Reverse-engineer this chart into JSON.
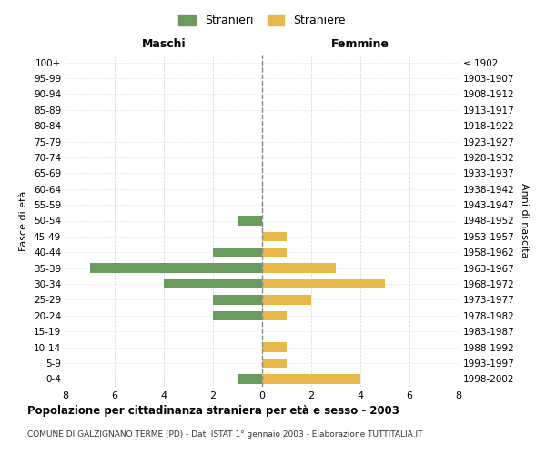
{
  "age_groups": [
    "0-4",
    "5-9",
    "10-14",
    "15-19",
    "20-24",
    "25-29",
    "30-34",
    "35-39",
    "40-44",
    "45-49",
    "50-54",
    "55-59",
    "60-64",
    "65-69",
    "70-74",
    "75-79",
    "80-84",
    "85-89",
    "90-94",
    "95-99",
    "100+"
  ],
  "birth_years": [
    "1998-2002",
    "1993-1997",
    "1988-1992",
    "1983-1987",
    "1978-1982",
    "1973-1977",
    "1968-1972",
    "1963-1967",
    "1958-1962",
    "1953-1957",
    "1948-1952",
    "1943-1947",
    "1938-1942",
    "1933-1937",
    "1928-1932",
    "1923-1927",
    "1918-1922",
    "1913-1917",
    "1908-1912",
    "1903-1907",
    "≤ 1902"
  ],
  "stranieri": [
    1,
    0,
    0,
    0,
    2,
    2,
    4,
    7,
    2,
    0,
    1,
    0,
    0,
    0,
    0,
    0,
    0,
    0,
    0,
    0,
    0
  ],
  "straniere": [
    4,
    1,
    1,
    0,
    1,
    2,
    5,
    3,
    1,
    1,
    0,
    0,
    0,
    0,
    0,
    0,
    0,
    0,
    0,
    0,
    0
  ],
  "color_stranieri": "#6b9a5e",
  "color_straniere": "#e8b84b",
  "title": "Popolazione per cittadinanza straniera per età e sesso - 2003",
  "subtitle": "COMUNE DI GALZIGNANO TERME (PD) - Dati ISTAT 1° gennaio 2003 - Elaborazione TUTTITALIA.IT",
  "xlabel_left": "Maschi",
  "xlabel_right": "Femmine",
  "ylabel_left": "Fasce di età",
  "ylabel_right": "Anni di nascita",
  "legend_stranieri": "Stranieri",
  "legend_straniere": "Straniere",
  "xlim": 8,
  "background_color": "#ffffff",
  "grid_color": "#cccccc"
}
